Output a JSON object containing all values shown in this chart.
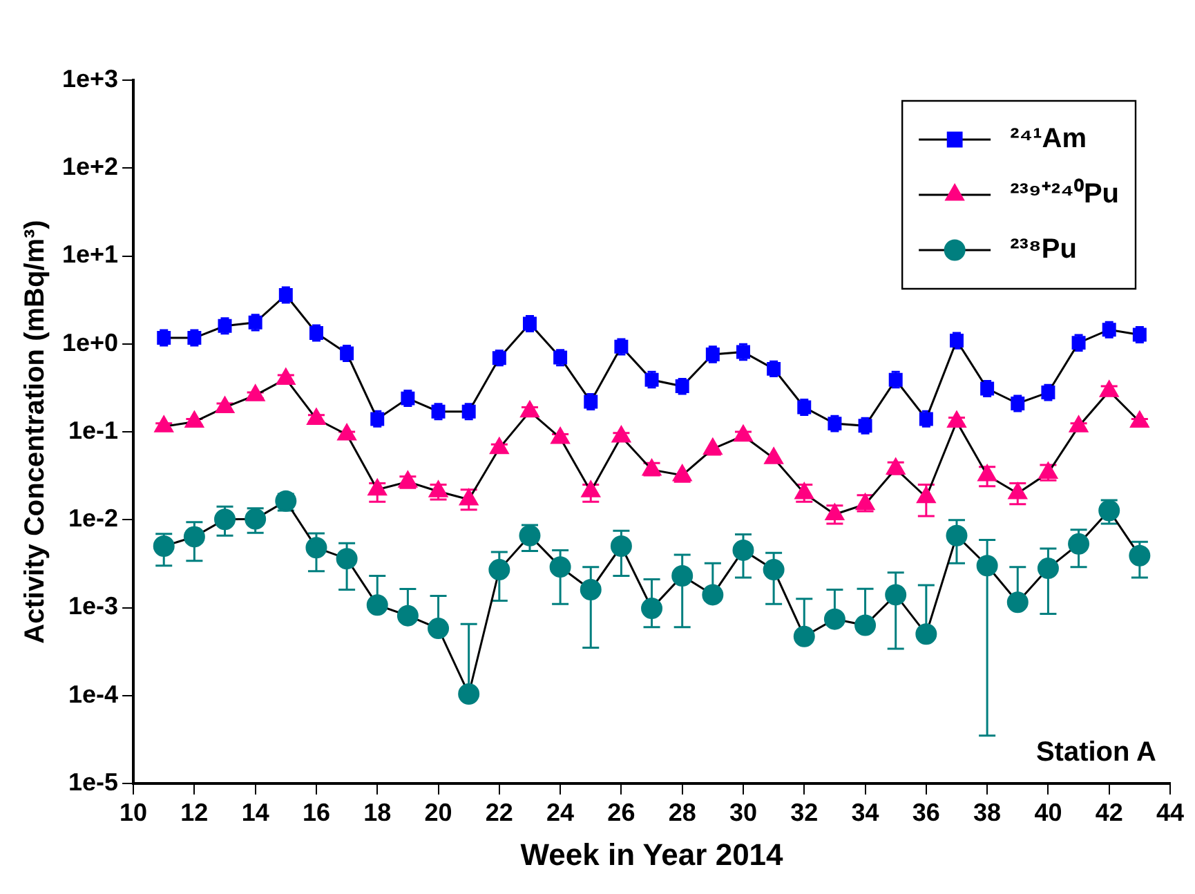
{
  "chart_data": {
    "type": "line",
    "xlabel": "Week in Year 2014",
    "ylabel": "Activity Concentration (mBq/m³)",
    "x": [
      11,
      12,
      13,
      14,
      15,
      16,
      17,
      18,
      19,
      20,
      21,
      22,
      23,
      24,
      25,
      26,
      27,
      28,
      29,
      30,
      31,
      32,
      33,
      34,
      35,
      36,
      37,
      38,
      39,
      40,
      41,
      42,
      43
    ],
    "xlim": [
      10,
      44
    ],
    "xticks": [
      10,
      12,
      14,
      16,
      18,
      20,
      22,
      24,
      26,
      28,
      30,
      32,
      34,
      36,
      38,
      40,
      42,
      44
    ],
    "ylim": [
      1e-05,
      1000
    ],
    "log": true,
    "yticks": [
      {
        "value": 1e-05,
        "label": "1e-5"
      },
      {
        "value": 0.0001,
        "label": "1e-4"
      },
      {
        "value": 0.001,
        "label": "1e-3"
      },
      {
        "value": 0.01,
        "label": "1e-2"
      },
      {
        "value": 0.1,
        "label": "1e-1"
      },
      {
        "value": 1,
        "label": "1e+0"
      },
      {
        "value": 10,
        "label": "1e+1"
      },
      {
        "value": 100,
        "label": "1e+2"
      },
      {
        "value": 1000,
        "label": "1e+3"
      }
    ],
    "grid": false,
    "legend": "top right",
    "line_style": "solid",
    "annotations": [
      "Station A"
    ],
    "series": [
      {
        "name": "²⁴¹Am",
        "color": "#0000ff",
        "marker": "square",
        "values": [
          1.17,
          1.17,
          1.6,
          1.75,
          3.6,
          1.33,
          0.78,
          0.14,
          0.24,
          0.17,
          0.17,
          0.69,
          1.7,
          0.7,
          0.22,
          0.93,
          0.39,
          0.33,
          0.76,
          0.81,
          0.52,
          0.19,
          0.124,
          0.117,
          0.39,
          0.14,
          1.09,
          0.31,
          0.21,
          0.28,
          1.03,
          1.45,
          1.27
        ],
        "errors": [
          [
            0.96,
            1.43
          ],
          [
            0.96,
            1.43
          ],
          [
            1.31,
            1.95
          ],
          [
            1.43,
            2.14
          ],
          [
            2.95,
            4.39
          ],
          [
            1.09,
            1.62
          ],
          [
            0.64,
            0.95
          ],
          [
            0.115,
            0.171
          ],
          [
            0.197,
            0.293
          ],
          [
            0.139,
            0.207
          ],
          [
            0.139,
            0.207
          ],
          [
            0.57,
            0.84
          ],
          [
            1.39,
            2.07
          ],
          [
            0.57,
            0.85
          ],
          [
            0.18,
            0.268
          ],
          [
            0.76,
            1.13
          ],
          [
            0.32,
            0.48
          ],
          [
            0.27,
            0.4
          ],
          [
            0.62,
            0.93
          ],
          [
            0.66,
            0.99
          ],
          [
            0.43,
            0.63
          ],
          [
            0.156,
            0.232
          ],
          [
            0.102,
            0.151
          ],
          [
            0.096,
            0.143
          ],
          [
            0.32,
            0.48
          ],
          [
            0.115,
            0.171
          ],
          [
            0.89,
            1.33
          ],
          [
            0.254,
            0.378
          ],
          [
            0.172,
            0.256
          ],
          [
            0.23,
            0.34
          ],
          [
            0.84,
            1.26
          ],
          [
            1.19,
            1.77
          ],
          [
            1.04,
            1.55
          ]
        ]
      },
      {
        "name": "²³⁹⁺²⁴⁰Pu",
        "color": "#ff0080",
        "marker": "triangle",
        "values": [
          0.115,
          0.13,
          0.19,
          0.26,
          0.4,
          0.14,
          0.093,
          0.022,
          0.027,
          0.021,
          0.017,
          0.065,
          0.17,
          0.085,
          0.021,
          0.088,
          0.037,
          0.032,
          0.064,
          0.09,
          0.05,
          0.02,
          0.0115,
          0.015,
          0.038,
          0.018,
          0.13,
          0.032,
          0.02,
          0.034,
          0.115,
          0.29,
          0.13
        ],
        "errors": [
          [
            0.105,
            0.125
          ],
          [
            0.12,
            0.14
          ],
          [
            0.17,
            0.21
          ],
          [
            0.24,
            0.28
          ],
          [
            0.37,
            0.44
          ],
          [
            0.13,
            0.155
          ],
          [
            0.085,
            0.1
          ],
          [
            0.016,
            0.026
          ],
          [
            0.023,
            0.031
          ],
          [
            0.017,
            0.025
          ],
          [
            0.013,
            0.022
          ],
          [
            0.058,
            0.072
          ],
          [
            0.155,
            0.19
          ],
          [
            0.077,
            0.094
          ],
          [
            0.016,
            0.025
          ],
          [
            0.08,
            0.097
          ],
          [
            0.032,
            0.044
          ],
          [
            0.027,
            0.032
          ],
          [
            0.055,
            0.064
          ],
          [
            0.082,
            0.1
          ],
          [
            0.045,
            0.05
          ],
          [
            0.016,
            0.025
          ],
          [
            0.009,
            0.0145
          ],
          [
            0.0125,
            0.019
          ],
          [
            0.033,
            0.045
          ],
          [
            0.011,
            0.025
          ],
          [
            0.12,
            0.145
          ],
          [
            0.024,
            0.04
          ],
          [
            0.015,
            0.026
          ],
          [
            0.028,
            0.042
          ],
          [
            0.105,
            0.125
          ],
          [
            0.26,
            0.33
          ],
          [
            0.12,
            0.14
          ]
        ]
      },
      {
        "name": "²³⁸Pu",
        "color": "#007f7f",
        "marker": "circle",
        "values": [
          0.005,
          0.0064,
          0.0101,
          0.0102,
          0.0163,
          0.0048,
          0.0036,
          0.00107,
          0.00081,
          0.00058,
          0.000104,
          0.0027,
          0.0066,
          0.0029,
          0.0016,
          0.005,
          0.00098,
          0.0023,
          0.0014,
          0.0045,
          0.0027,
          0.00047,
          0.00074,
          0.00063,
          0.0014,
          0.0005,
          0.0066,
          0.003,
          0.00115,
          0.0028,
          0.0053,
          0.0127,
          0.0039
        ],
        "errors": [
          [
            0.003,
            0.0069
          ],
          [
            0.0034,
            0.0094
          ],
          [
            0.0066,
            0.0141
          ],
          [
            0.0071,
            0.0135
          ],
          [
            0.0127,
            0.0196
          ],
          [
            0.0026,
            0.007
          ],
          [
            0.0016,
            0.0054
          ],
          [
            0.00107,
            0.0023
          ],
          [
            0.00081,
            0.00163
          ],
          [
            0.00058,
            0.00136
          ],
          [
            0.000104,
            0.00065
          ],
          [
            0.0012,
            0.0043
          ],
          [
            0.0044,
            0.0087
          ],
          [
            0.0011,
            0.0045
          ],
          [
            0.00035,
            0.0029
          ],
          [
            0.0023,
            0.0075
          ],
          [
            0.0006,
            0.0021
          ],
          [
            0.0006,
            0.004
          ],
          [
            0.0014,
            0.0032
          ],
          [
            0.0022,
            0.0068
          ],
          [
            0.0011,
            0.0042
          ],
          [
            0.00047,
            0.00126
          ],
          [
            0.00074,
            0.0016
          ],
          [
            0.00063,
            0.00164
          ],
          [
            0.00034,
            0.0025
          ],
          [
            0.0005,
            0.0018
          ],
          [
            0.0032,
            0.0099
          ],
          [
            3.5e-05,
            0.0059
          ],
          [
            0.00115,
            0.0029
          ],
          [
            0.00085,
            0.0047
          ],
          [
            0.0029,
            0.0077
          ],
          [
            0.009,
            0.0167
          ],
          [
            0.0022,
            0.0056
          ]
        ]
      }
    ]
  }
}
